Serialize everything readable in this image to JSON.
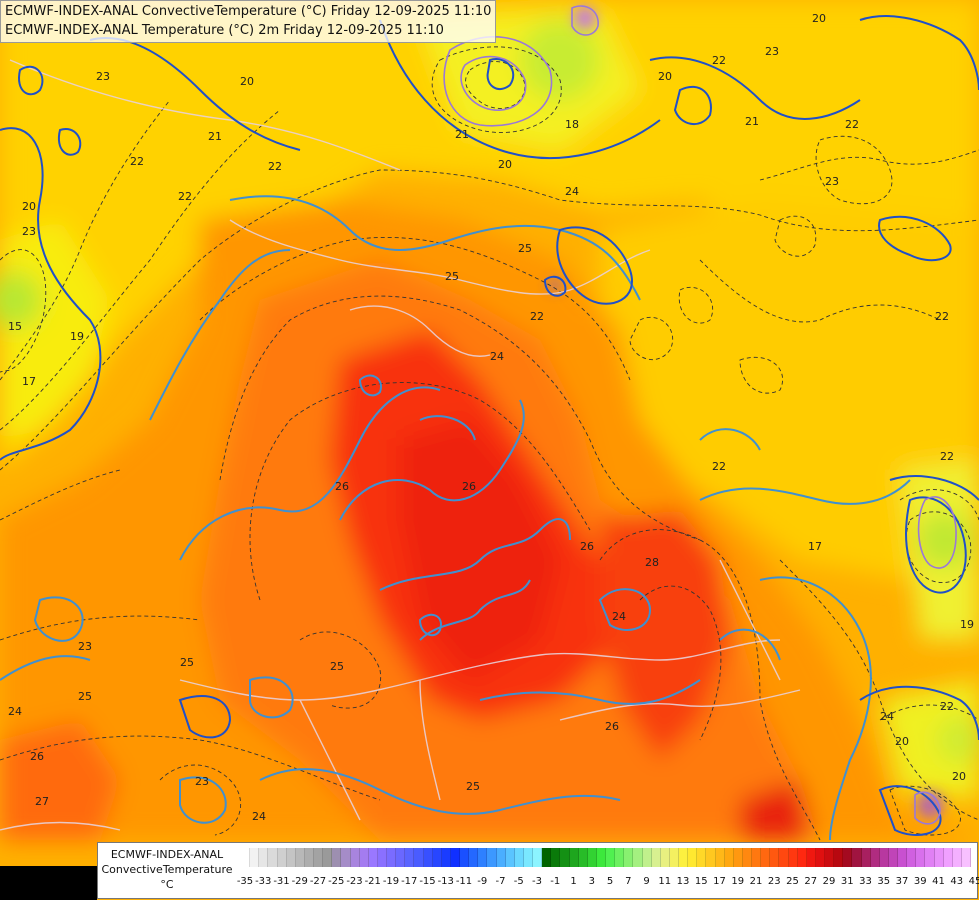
{
  "title_lines": [
    "ECMWF-INDEX-ANAL ConvectiveTemperature (°C) Friday 12-09-2025 11:10",
    "ECMWF-INDEX-ANAL Temperature (°C) 2m Friday 12-09-2025 11:10"
  ],
  "legend": {
    "source": "ECMWF-INDEX-ANAL",
    "parameter": "ConvectiveTemperature",
    "unit": "°C",
    "tick_labels": [
      "-35",
      "-33",
      "-31",
      "-29",
      "-27",
      "-25",
      "-23",
      "-21",
      "-19",
      "-17",
      "-15",
      "-13",
      "-11",
      "-9",
      "-7",
      "-5",
      "-3",
      "-1",
      "1",
      "3",
      "5",
      "7",
      "9",
      "11",
      "13",
      "15",
      "17",
      "19",
      "21",
      "23",
      "25",
      "27",
      "29",
      "31",
      "33",
      "35",
      "37",
      "39",
      "41",
      "43",
      "45"
    ],
    "colors": [
      "#ffffff",
      "#f2f2f2",
      "#e6e6e6",
      "#dadada",
      "#cfcfcf",
      "#c4c4c4",
      "#b8b8b8",
      "#adadad",
      "#a3a3a3",
      "#9a9a9a",
      "#9d8fb0",
      "#a58cc8",
      "#a884de",
      "#a47cf0",
      "#9a78ff",
      "#8a70ff",
      "#7a6cff",
      "#6a68ff",
      "#5a64ff",
      "#4a5cff",
      "#3850ff",
      "#2846ff",
      "#1a3cff",
      "#1030ff",
      "#1a50ff",
      "#2468ff",
      "#2e80ff",
      "#3c98ff",
      "#4aaeff",
      "#5ac4ff",
      "#6ad8ff",
      "#7ae8ff",
      "#8cf4ff",
      "#006400",
      "#0a7a0a",
      "#149014",
      "#1ea61e",
      "#28bc28",
      "#32d232",
      "#3ce83c",
      "#50f050",
      "#6cf060",
      "#88f070",
      "#a4f080",
      "#c0f08c",
      "#d8f090",
      "#e8f080",
      "#f4f060",
      "#fcf040",
      "#ffe830",
      "#ffd828",
      "#ffc820",
      "#ffb818",
      "#ffa810",
      "#ff9810",
      "#ff8810",
      "#ff7810",
      "#ff6810",
      "#ff5810",
      "#ff4810",
      "#ff3810",
      "#ff2810",
      "#f01810",
      "#e01010",
      "#cc0c10",
      "#b80810",
      "#a40a20",
      "#a01440",
      "#a82060",
      "#b02c80",
      "#b838a0",
      "#c044b8",
      "#c850d0",
      "#d060e0",
      "#d870ec",
      "#e080f4",
      "#e890fa",
      "#f0a0ff",
      "#f4b0ff",
      "#f8c0ff"
    ]
  },
  "contour_labels": [
    "22",
    "20",
    "23",
    "22",
    "21",
    "22",
    "20",
    "23",
    "20",
    "21",
    "18",
    "20",
    "21",
    "22",
    "23",
    "24",
    "22",
    "25",
    "25",
    "23",
    "22",
    "22",
    "24",
    "22",
    "15",
    "19",
    "17",
    "26",
    "26",
    "28",
    "26",
    "24",
    "25",
    "26",
    "25",
    "23",
    "24",
    "25",
    "26",
    "25",
    "24",
    "23",
    "27",
    "24",
    "22",
    "20",
    "20",
    "19",
    "22",
    "17",
    "20"
  ]
}
